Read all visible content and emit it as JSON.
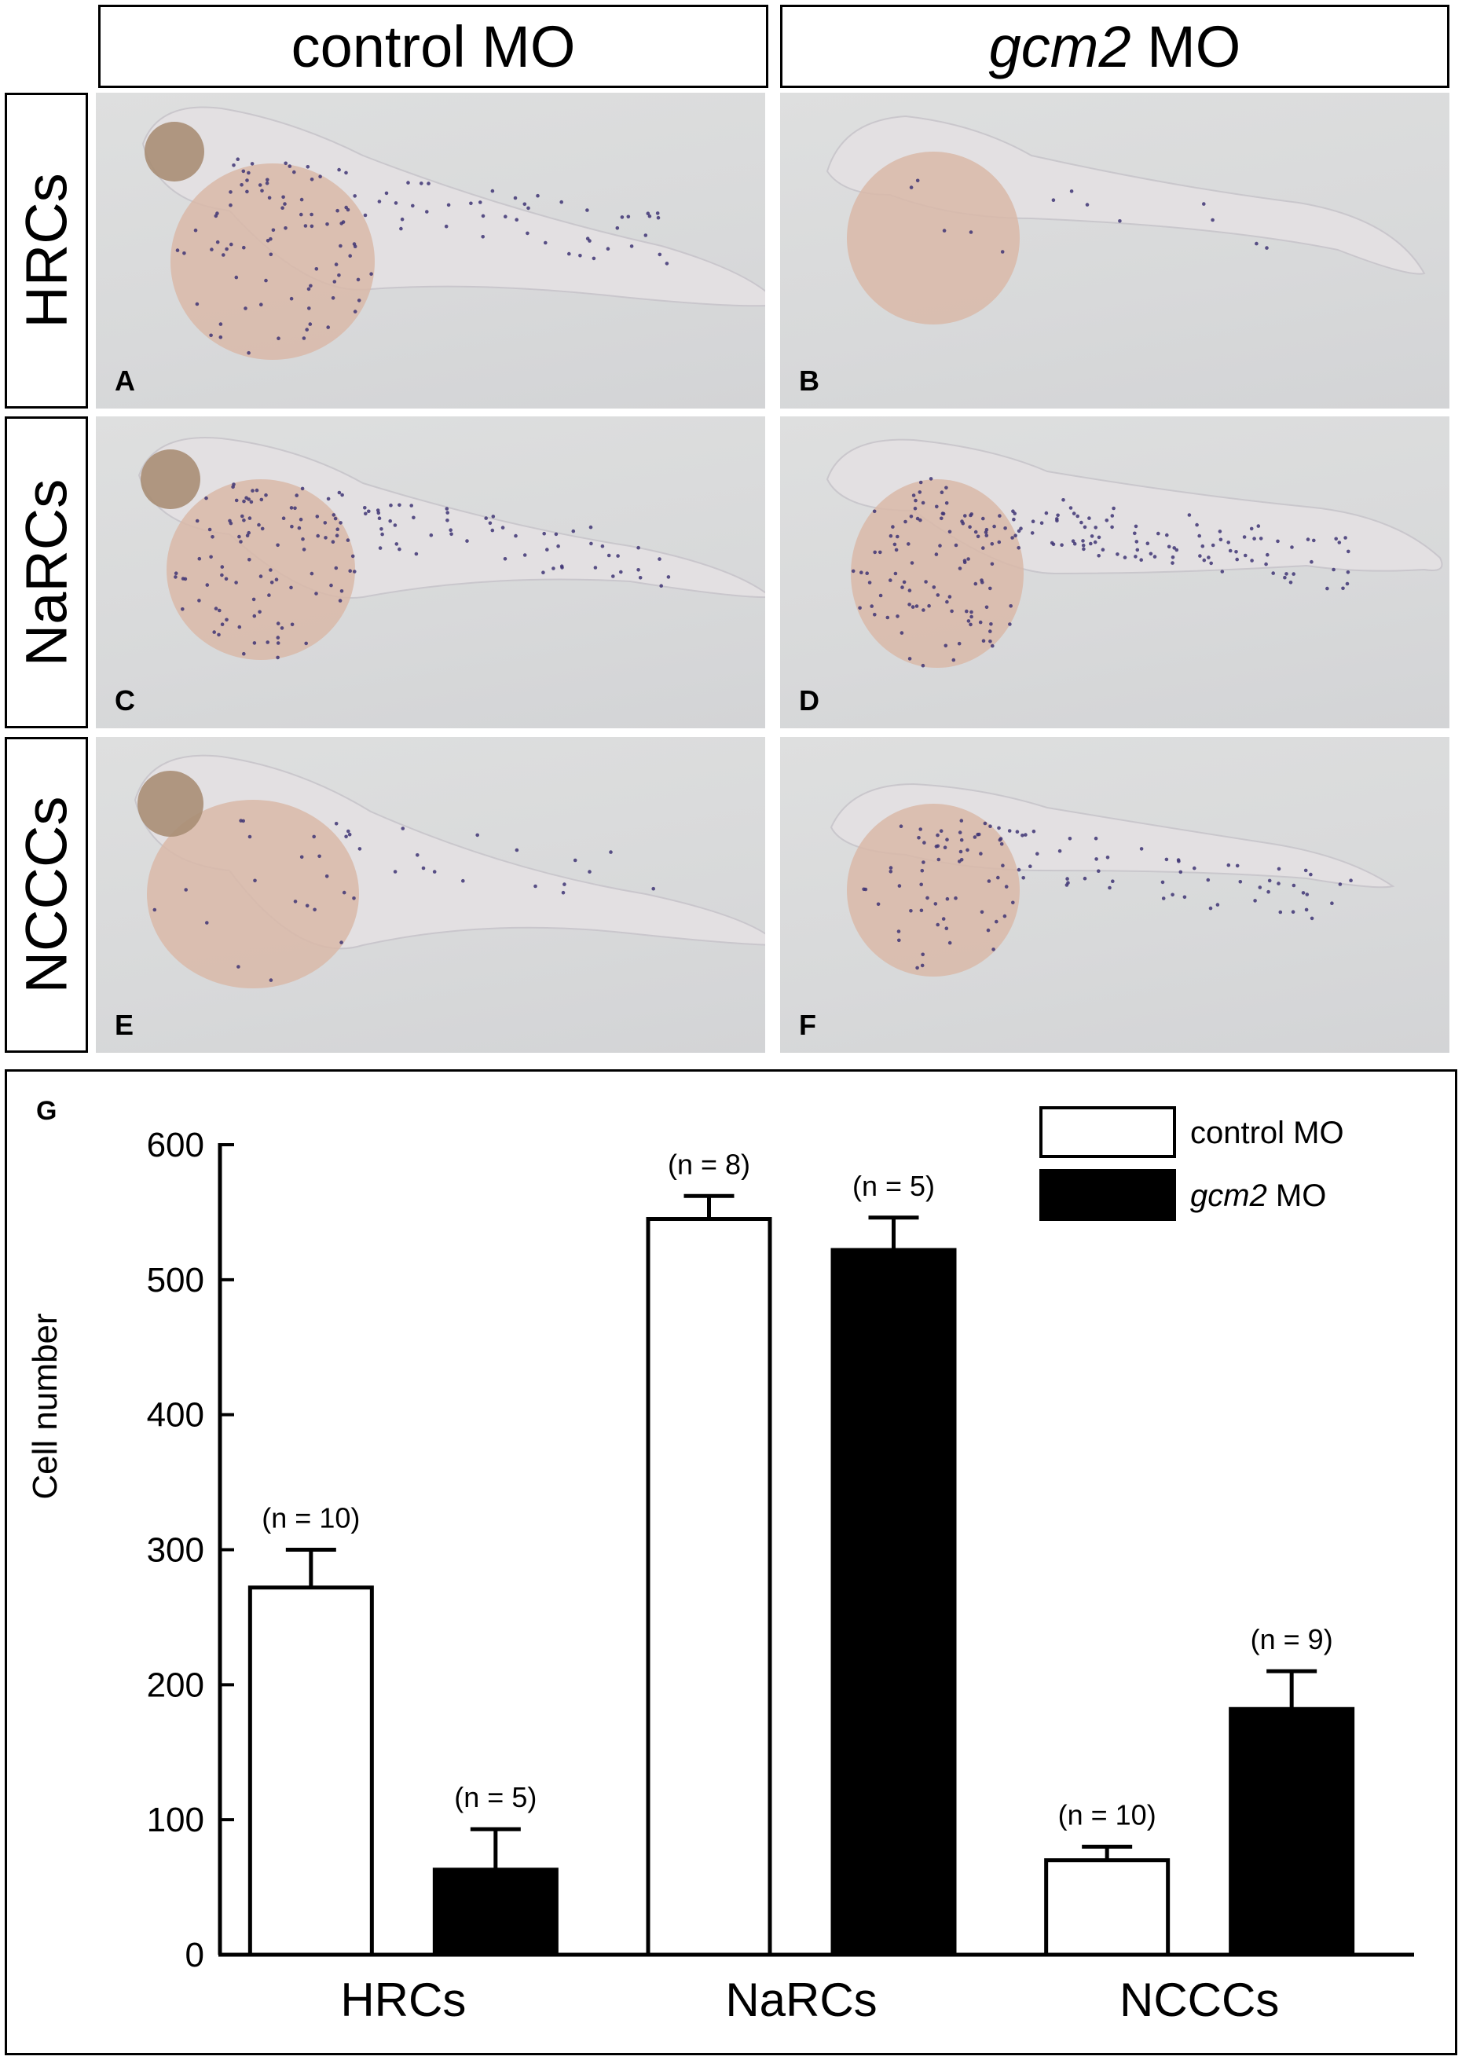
{
  "column_headers": {
    "control": "control MO",
    "gcm2_gene": "gcm2",
    "gcm2_suffix": " MO"
  },
  "row_labels": [
    "HRCs",
    "NaRCs",
    "NCCCs"
  ],
  "panels": [
    {
      "letter": "A",
      "treatment": "control MO",
      "cell_type": "HRCs",
      "stain_level": 0.5
    },
    {
      "letter": "B",
      "treatment": "gcm2 MO",
      "cell_type": "HRCs",
      "stain_level": 0.05
    },
    {
      "letter": "C",
      "treatment": "control MO",
      "cell_type": "NaRCs",
      "stain_level": 0.6
    },
    {
      "letter": "D",
      "treatment": "gcm2 MO",
      "cell_type": "NaRCs",
      "stain_level": 0.8
    },
    {
      "letter": "E",
      "treatment": "control MO",
      "cell_type": "NCCCs",
      "stain_level": 0.15
    },
    {
      "letter": "F",
      "treatment": "gcm2 MO",
      "cell_type": "NCCCs",
      "stain_level": 0.45
    }
  ],
  "colors": {
    "stain_dot": "#3e3474",
    "yolk": "#d9b8a8",
    "eye": "#a88e76",
    "embryo_body": "#e4e1e3"
  },
  "chart_data": {
    "type": "bar",
    "panel_letter": "G",
    "categories": [
      "HRCs",
      "NaRCs",
      "NCCCs"
    ],
    "series": [
      {
        "name": "control MO",
        "fill": "#ffffff",
        "values": [
          272,
          545,
          70
        ],
        "errors": [
          28,
          17,
          10
        ],
        "n_labels": [
          "(n = 10)",
          "(n = 8)",
          "(n = 10)"
        ]
      },
      {
        "name": "gcm2 MO",
        "name_gene": "gcm2",
        "name_suffix": " MO",
        "fill": "#000000",
        "values": [
          63,
          522,
          182
        ],
        "errors": [
          30,
          24,
          28
        ],
        "n_labels": [
          "(n = 5)",
          "(n = 5)",
          "(n = 9)"
        ]
      }
    ],
    "ylabel": "Cell number",
    "xlabel": "",
    "ylim": [
      0,
      600
    ],
    "yticks": [
      0,
      100,
      200,
      300,
      400,
      500,
      600
    ],
    "legend_position": "top-right",
    "grid": false
  }
}
